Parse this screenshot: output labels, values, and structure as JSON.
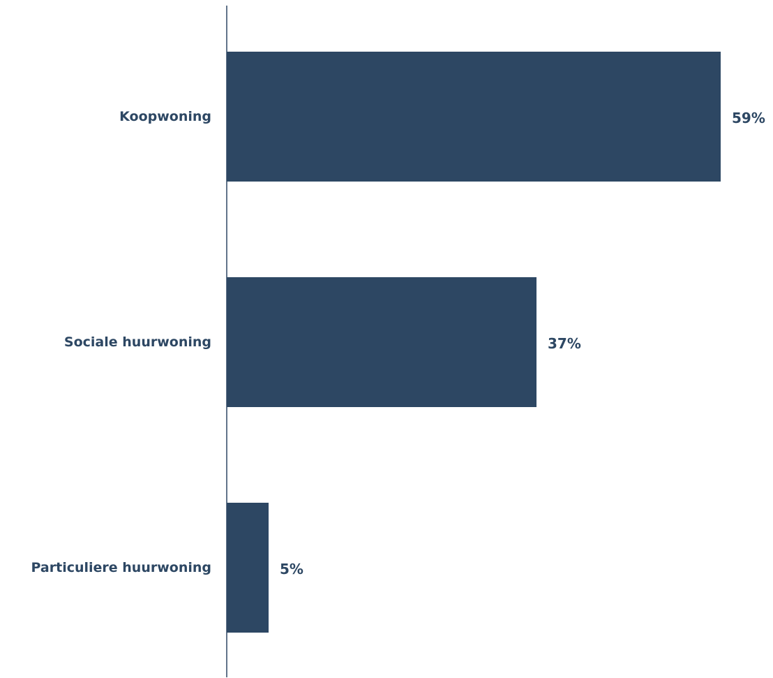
{
  "chart_data": {
    "type": "bar",
    "orientation": "horizontal",
    "categories": [
      "Koopwoning",
      "Sociale huurwoning",
      "Particuliere huurwoning"
    ],
    "values": [
      59,
      37,
      5
    ],
    "value_labels": [
      "59%",
      "37%",
      "5%"
    ],
    "unit": "%",
    "xlim": [
      0,
      60
    ],
    "grid": false,
    "legend": "none",
    "title": "",
    "xlabel": "",
    "ylabel": ""
  },
  "colors": {
    "bar": "#2d4763",
    "axis": "#2d4763",
    "text": "#2d4763"
  }
}
